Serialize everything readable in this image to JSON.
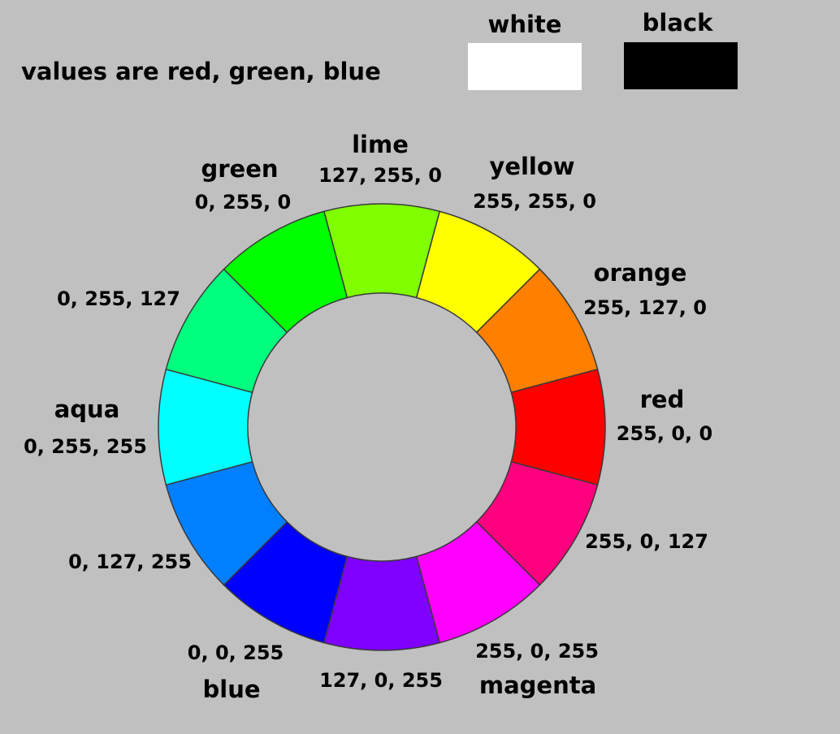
{
  "caption": "values are red, green, blue",
  "swatches": [
    {
      "label": "white",
      "color": "#ffffff"
    },
    {
      "label": "black",
      "color": "#000000"
    }
  ],
  "wheel": {
    "segments": [
      {
        "name": "lime",
        "rgb": "127, 255, 0",
        "color": "#7fff00"
      },
      {
        "name": "yellow",
        "rgb": "255, 255, 0",
        "color": "#ffff00"
      },
      {
        "name": "orange",
        "rgb": "255, 127, 0",
        "color": "#ff7f00"
      },
      {
        "name": "red",
        "rgb": "255, 0, 0",
        "color": "#ff0000"
      },
      {
        "name": "",
        "rgb": "255, 0, 127",
        "color": "#ff007f"
      },
      {
        "name": "magenta",
        "rgb": "255, 0, 255",
        "color": "#ff00ff"
      },
      {
        "name": "",
        "rgb": "127, 0, 255",
        "color": "#7f00ff"
      },
      {
        "name": "blue",
        "rgb": "0, 0, 255",
        "color": "#0000ff"
      },
      {
        "name": "",
        "rgb": "0, 127, 255",
        "color": "#007fff"
      },
      {
        "name": "aqua",
        "rgb": "0, 255, 255",
        "color": "#00ffff"
      },
      {
        "name": "",
        "rgb": "0, 255, 127",
        "color": "#00ff7f"
      },
      {
        "name": "green",
        "rgb": "0, 255, 0",
        "color": "#00ff00"
      }
    ]
  }
}
